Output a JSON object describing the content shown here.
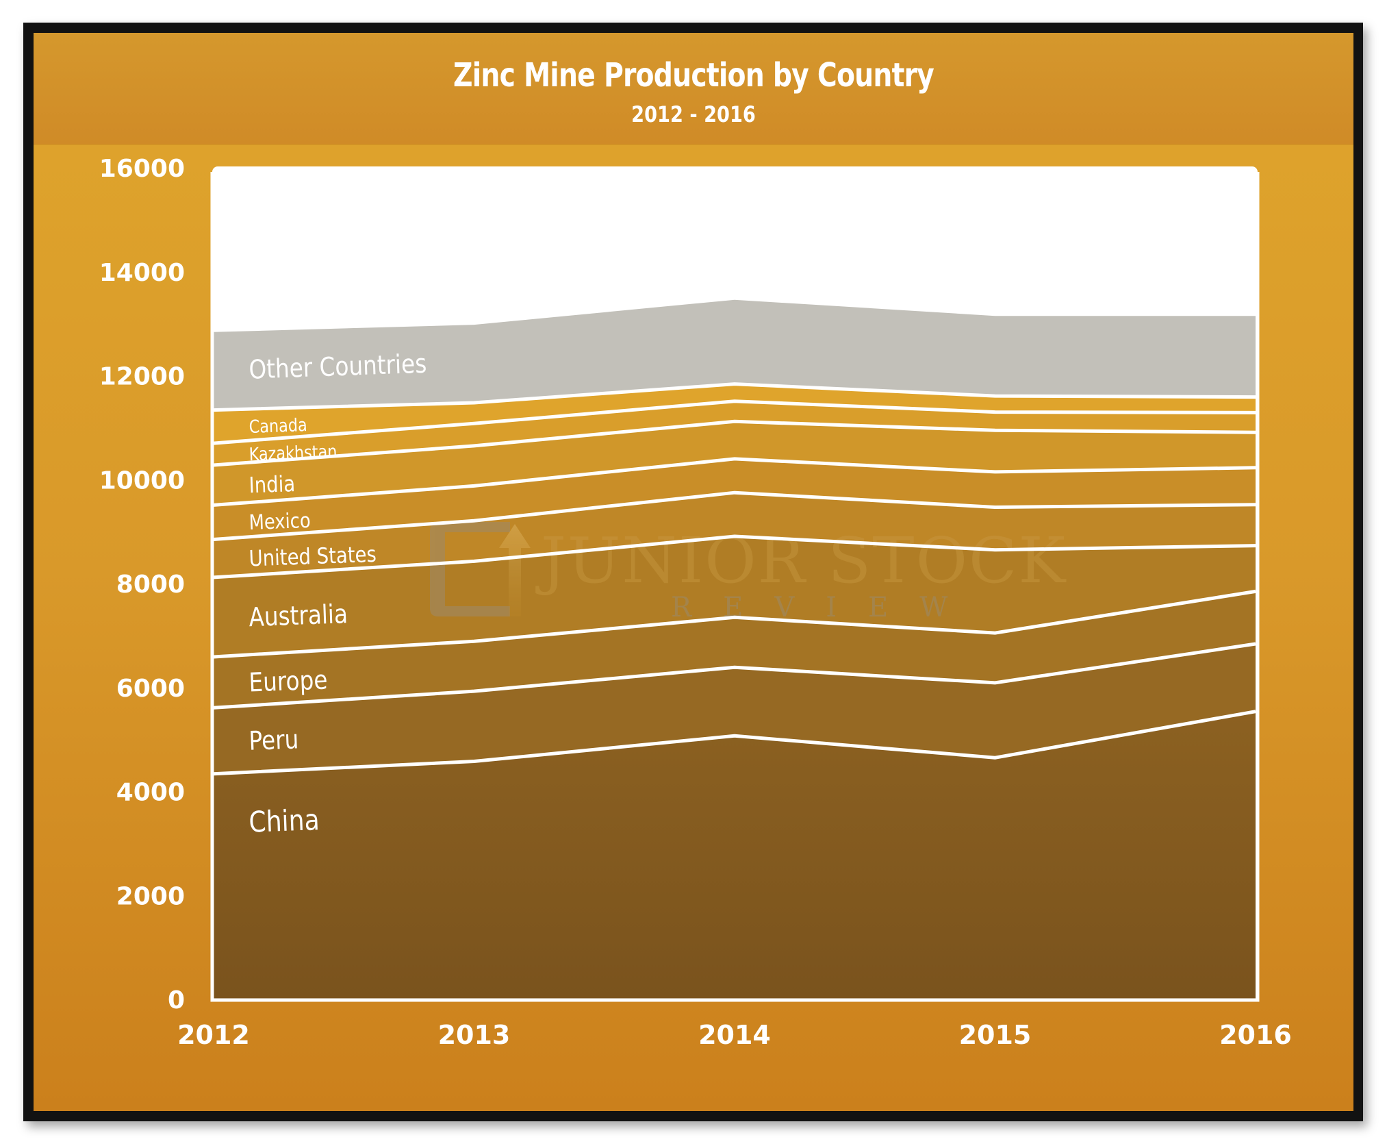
{
  "chart_data": {
    "type": "area",
    "stacked": true,
    "title": "Zinc Mine Production by Country",
    "subtitle": "2012 - 2016",
    "xlabel": "",
    "ylabel": "",
    "x": [
      "2012",
      "2013",
      "2014",
      "2015",
      "2016"
    ],
    "ylim": [
      0,
      16000
    ],
    "yticks": [
      "0",
      "2000",
      "4000",
      "6000",
      "8000",
      "10000",
      "12000",
      "14000",
      "16000"
    ],
    "ytick_values": [
      0,
      2000,
      4000,
      6000,
      8000,
      10000,
      12000,
      14000,
      16000
    ],
    "grid": false,
    "legend": "inline-labels-left",
    "series": [
      {
        "name": "China",
        "values": [
          4340,
          4580,
          5070,
          4650,
          5540
        ],
        "color": "#85591f"
      },
      {
        "name": "Peru",
        "values": [
          1270,
          1350,
          1320,
          1440,
          1300
        ],
        "color": "#966923"
      },
      {
        "name": "Europe",
        "values": [
          980,
          960,
          960,
          960,
          1010
        ],
        "color": "#a47424"
      },
      {
        "name": "Australia",
        "values": [
          1530,
          1540,
          1560,
          1600,
          880
        ],
        "color": "#b07d25"
      },
      {
        "name": "United States",
        "values": [
          730,
          780,
          840,
          820,
          790
        ],
        "color": "#bf8727"
      },
      {
        "name": "Mexico",
        "values": [
          660,
          670,
          650,
          680,
          710
        ],
        "color": "#c98e28"
      },
      {
        "name": "India",
        "values": [
          770,
          770,
          720,
          800,
          680
        ],
        "color": "#d0972a"
      },
      {
        "name": "Kazakhstan",
        "values": [
          420,
          430,
          390,
          350,
          380
        ],
        "color": "#d99e2b"
      },
      {
        "name": "Canada",
        "values": [
          640,
          400,
          330,
          310,
          300
        ],
        "color": "#dfa42c"
      },
      {
        "name": "Other Countries",
        "values": [
          1500,
          1500,
          1620,
          1540,
          1560
        ],
        "color": "#c2c0b9"
      }
    ],
    "watermark": {
      "line1": "JUNIOR STOCK",
      "line2": "REVIEW"
    }
  },
  "colors": {
    "frame": "#121212",
    "panel_top": "#dfa52c",
    "panel_bottom": "#cb801c",
    "plot_background": "#ffffff",
    "separator": "#ffffff"
  }
}
